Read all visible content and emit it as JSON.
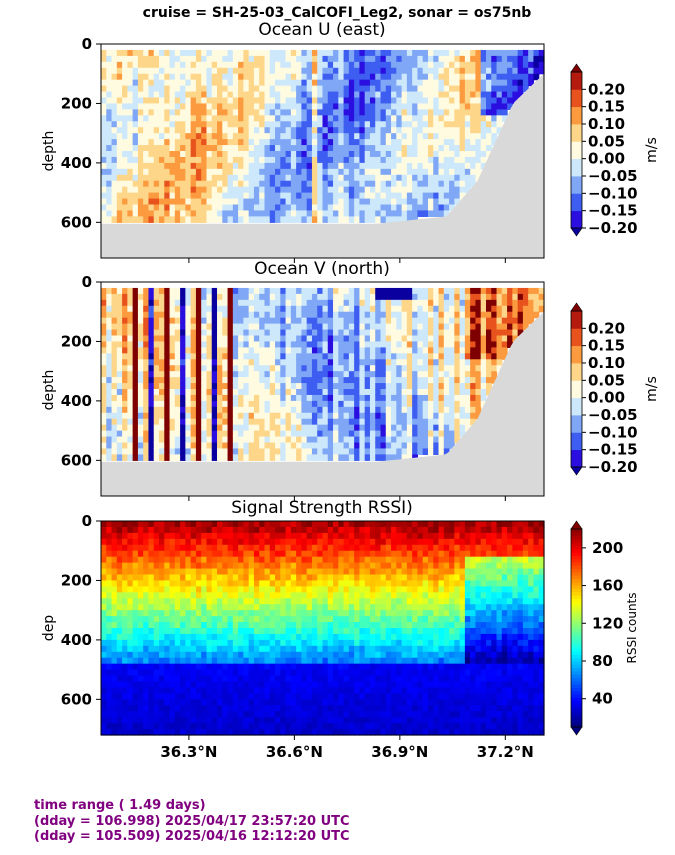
{
  "suptitle": "cruise = SH-25-03_CalCOFI_Leg2,  sonar = os75nb",
  "footer": {
    "line1": "time range ( 1.49 days)",
    "line2": "(dday = 106.998) 2025/04/17 23:57:20 UTC",
    "line3": "(dday = 105.509) 2025/04/16 12:12:20 UTC"
  },
  "chart_data": [
    {
      "type": "heatmap",
      "title": "Ocean U (east)",
      "ylabel": "depth",
      "xlabel": "",
      "x_range_deg": [
        36.05,
        37.31
      ],
      "y_range": [
        720,
        0
      ],
      "y_ticks": [
        0,
        200,
        400,
        600
      ],
      "y_tick_labels": [
        "0",
        "200",
        "400",
        "600"
      ],
      "x_ticks": [
        36.3,
        36.6,
        36.9,
        37.2
      ],
      "x_tick_labels": [],
      "colorbar": {
        "label": "m/s",
        "levels": [
          -0.2,
          -0.15,
          -0.1,
          -0.05,
          0.0,
          0.05,
          0.1,
          0.15,
          0.2
        ],
        "tick_labels": [
          "−0.20",
          "−0.15",
          "−0.10",
          "−0.05",
          "0.00",
          "0.05",
          "0.10",
          "0.15",
          "0.20"
        ],
        "colors": [
          "#2a0fe0",
          "#3d5ef0",
          "#7fa7f5",
          "#cde8fb",
          "#fffbe0",
          "#fdd68a",
          "#fb9a3e",
          "#e8531d",
          "#b51a0e"
        ],
        "extend_low": "#0a00a0",
        "extend_high": "#7f0000"
      },
      "no_data_color": "#d9d9d9",
      "bottom_depth": 605
    },
    {
      "type": "heatmap",
      "title": "Ocean V (north)",
      "ylabel": "depth",
      "xlabel": "",
      "x_range_deg": [
        36.05,
        37.31
      ],
      "y_range": [
        720,
        0
      ],
      "y_ticks": [
        0,
        200,
        400,
        600
      ],
      "y_tick_labels": [
        "0",
        "200",
        "400",
        "600"
      ],
      "x_ticks": [
        36.3,
        36.6,
        36.9,
        37.2
      ],
      "x_tick_labels": [],
      "colorbar": {
        "label": "m/s",
        "levels": [
          -0.2,
          -0.15,
          -0.1,
          -0.05,
          0.0,
          0.05,
          0.1,
          0.15,
          0.2
        ],
        "tick_labels": [
          "−0.20",
          "−0.15",
          "−0.10",
          "−0.05",
          "0.00",
          "0.05",
          "0.10",
          "0.15",
          "0.20"
        ],
        "colors": [
          "#2a0fe0",
          "#3d5ef0",
          "#7fa7f5",
          "#cde8fb",
          "#fffbe0",
          "#fdd68a",
          "#fb9a3e",
          "#e8531d",
          "#b51a0e"
        ],
        "extend_low": "#0a00a0",
        "extend_high": "#7f0000"
      },
      "no_data_color": "#d9d9d9",
      "bottom_depth": 605
    },
    {
      "type": "heatmap",
      "title": "Signal Strength RSSI)",
      "ylabel": "dep",
      "xlabel": "",
      "x_range_deg": [
        36.05,
        37.31
      ],
      "y_range": [
        720,
        0
      ],
      "y_ticks": [
        0,
        200,
        400,
        600
      ],
      "y_tick_labels": [
        "0",
        "200",
        "400",
        "600"
      ],
      "x_ticks": [
        36.3,
        36.6,
        36.9,
        37.2
      ],
      "x_tick_labels": [
        "36.3°N",
        "36.6°N",
        "36.9°N",
        "37.2°N"
      ],
      "colorbar": {
        "label": "RSSI counts",
        "range": [
          10,
          220
        ],
        "ticks": [
          40,
          80,
          120,
          160,
          200
        ],
        "tick_labels": [
          "40",
          "80",
          "120",
          "160",
          "200"
        ],
        "colormap": "jet"
      }
    }
  ]
}
